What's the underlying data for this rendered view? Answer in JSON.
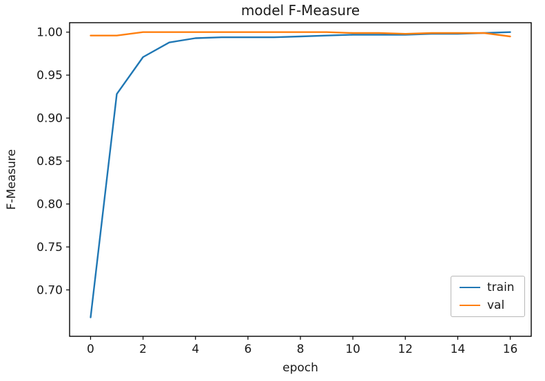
{
  "chart_data": {
    "type": "line",
    "title": "model F-Measure",
    "xlabel": "epoch",
    "ylabel": "F-Measure",
    "x": [
      0,
      1,
      2,
      3,
      4,
      5,
      6,
      7,
      8,
      9,
      10,
      11,
      12,
      13,
      14,
      15,
      16
    ],
    "series": [
      {
        "name": "train",
        "color": "#1f77b4",
        "values": [
          0.668,
          0.928,
          0.971,
          0.988,
          0.993,
          0.994,
          0.994,
          0.994,
          0.995,
          0.996,
          0.997,
          0.997,
          0.997,
          0.998,
          0.998,
          0.999,
          1.0
        ]
      },
      {
        "name": "val",
        "color": "#ff7f0e",
        "values": [
          0.996,
          0.996,
          1.0,
          1.0,
          1.0,
          1.0,
          1.0,
          1.0,
          1.0,
          1.0,
          0.999,
          0.999,
          0.998,
          0.999,
          0.999,
          0.999,
          0.995
        ]
      }
    ],
    "xticks": [
      0,
      2,
      4,
      6,
      8,
      10,
      12,
      14,
      16
    ],
    "yticks": [
      0.7,
      0.75,
      0.8,
      0.85,
      0.9,
      0.95,
      1.0
    ],
    "xlim": [
      -0.8,
      16.8
    ],
    "ylim": [
      0.646,
      1.011
    ],
    "grid": false,
    "legend_position": "lower right",
    "axis_color": "#000000",
    "tick_label_color": "#1a1a1a"
  }
}
